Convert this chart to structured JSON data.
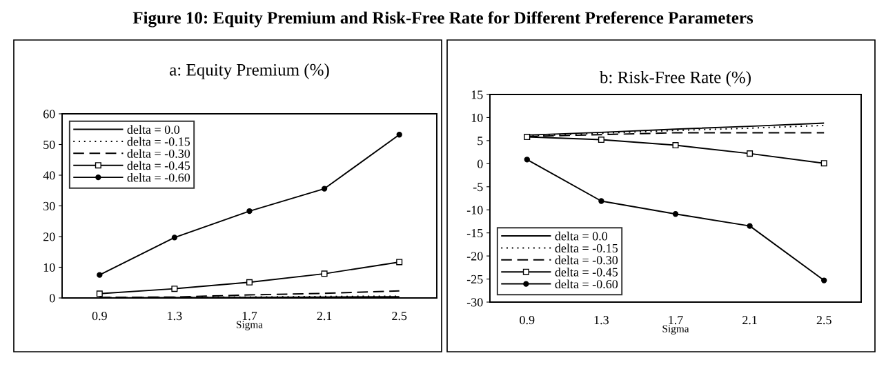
{
  "chart_data": [
    {
      "type": "line",
      "title": "a: Equity Premium (%)",
      "xlabel": "Sigma",
      "categories": [
        "0.9",
        "1.3",
        "1.7",
        "2.1",
        "2.5"
      ],
      "ylim": [
        0,
        60
      ],
      "yticks": [
        0,
        10,
        20,
        30,
        40,
        50,
        60
      ],
      "grid": false,
      "legend": "top left",
      "series": [
        {
          "name": "delta = 0.0",
          "color": "#000000",
          "line_style": "solid",
          "marker": "none",
          "values": [
            0.0,
            0.1,
            0.2,
            0.3,
            0.4
          ]
        },
        {
          "name": "delta = -0.15",
          "color": "#000000",
          "line_style": "dotted",
          "marker": "none",
          "values": [
            0.1,
            0.2,
            0.3,
            0.5,
            0.6
          ]
        },
        {
          "name": "delta = -0.30",
          "color": "#000000",
          "line_style": "dashed",
          "marker": "none",
          "values": [
            0.2,
            0.3,
            1.0,
            1.5,
            2.3
          ]
        },
        {
          "name": "delta = -0.45",
          "color": "#000000",
          "line_style": "solid",
          "marker": "square",
          "values": [
            1.4,
            3.0,
            5.1,
            7.9,
            11.7
          ]
        },
        {
          "name": "delta = -0.60",
          "color": "#000000",
          "line_style": "solid",
          "marker": "circle",
          "values": [
            7.5,
            19.7,
            28.3,
            35.6,
            53.2
          ]
        }
      ]
    },
    {
      "type": "line",
      "title": "b: Risk-Free Rate (%)",
      "xlabel": "Sigma",
      "categories": [
        "0.9",
        "1.3",
        "1.7",
        "2.1",
        "2.5"
      ],
      "ylim": [
        -30,
        15
      ],
      "yticks": [
        -30,
        -25,
        -20,
        -15,
        -10,
        -5,
        0,
        5,
        10,
        15
      ],
      "grid": false,
      "legend": "bottom left",
      "annotations": [
        "Figure 10: Equity Premium and Risk-Free Rate for Different Preference Parameters"
      ],
      "series": [
        {
          "name": "delta = 0.0",
          "color": "#000000",
          "line_style": "solid",
          "marker": "none",
          "values": [
            6.2,
            6.8,
            7.5,
            8.1,
            8.8
          ]
        },
        {
          "name": "delta = -0.15",
          "color": "#000000",
          "line_style": "dotted",
          "marker": "none",
          "values": [
            6.0,
            6.6,
            7.2,
            7.7,
            8.3
          ]
        },
        {
          "name": "delta = -0.30",
          "color": "#000000",
          "line_style": "dashed",
          "marker": "none",
          "values": [
            5.9,
            6.3,
            6.7,
            6.7,
            6.7
          ]
        },
        {
          "name": "delta = -0.45",
          "color": "#000000",
          "line_style": "solid",
          "marker": "square",
          "values": [
            5.8,
            5.2,
            4.0,
            2.2,
            0.1
          ]
        },
        {
          "name": "delta = -0.60",
          "color": "#000000",
          "line_style": "solid",
          "marker": "circle",
          "values": [
            0.9,
            -8.1,
            -10.9,
            -13.5,
            -25.3
          ]
        }
      ]
    }
  ]
}
